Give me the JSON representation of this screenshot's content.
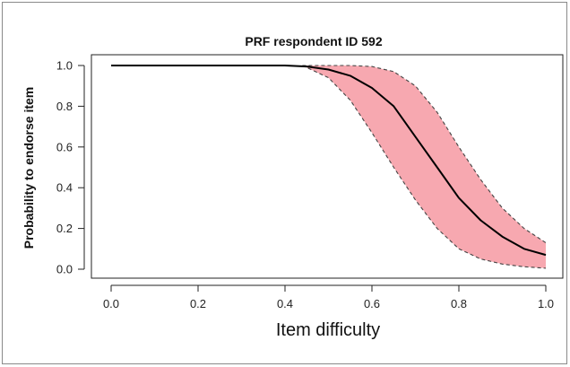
{
  "chart_data": {
    "type": "line",
    "title": "PRF respondent ID 592",
    "xlabel": "Item difficulty",
    "ylabel": "Probability to endorse item",
    "xlim": [
      0.0,
      1.0
    ],
    "ylim": [
      0.0,
      1.0
    ],
    "xticks": [
      "0.0",
      "0.2",
      "0.4",
      "0.6",
      "0.8",
      "1.0"
    ],
    "yticks": [
      "0.0",
      "0.2",
      "0.4",
      "0.6",
      "0.8",
      "1.0"
    ],
    "grid": false,
    "legend": "none",
    "colors": {
      "band_fill": "#f7a8b0",
      "band_edge": "#444444",
      "line": "#000000"
    },
    "series": [
      {
        "values": [
          {
            "x": 0.0,
            "y": 1.0
          },
          {
            "x": 0.4,
            "y": 1.0
          },
          {
            "x": 0.45,
            "y": 0.995
          },
          {
            "x": 0.5,
            "y": 0.98
          },
          {
            "x": 0.55,
            "y": 0.95
          },
          {
            "x": 0.6,
            "y": 0.89
          },
          {
            "x": 0.65,
            "y": 0.8
          },
          {
            "x": 0.7,
            "y": 0.65
          },
          {
            "x": 0.75,
            "y": 0.5
          },
          {
            "x": 0.8,
            "y": 0.35
          },
          {
            "x": 0.85,
            "y": 0.24
          },
          {
            "x": 0.9,
            "y": 0.16
          },
          {
            "x": 0.95,
            "y": 0.1
          },
          {
            "x": 1.0,
            "y": 0.07
          }
        ]
      }
    ],
    "band": {
      "upper": [
        {
          "x": 0.44,
          "y": 1.0
        },
        {
          "x": 0.5,
          "y": 1.0
        },
        {
          "x": 0.55,
          "y": 1.0
        },
        {
          "x": 0.6,
          "y": 0.995
        },
        {
          "x": 0.65,
          "y": 0.97
        },
        {
          "x": 0.7,
          "y": 0.9
        },
        {
          "x": 0.75,
          "y": 0.77
        },
        {
          "x": 0.8,
          "y": 0.6
        },
        {
          "x": 0.85,
          "y": 0.44
        },
        {
          "x": 0.9,
          "y": 0.3
        },
        {
          "x": 0.95,
          "y": 0.2
        },
        {
          "x": 1.0,
          "y": 0.13
        }
      ],
      "lower": [
        {
          "x": 0.44,
          "y": 1.0
        },
        {
          "x": 0.5,
          "y": 0.94
        },
        {
          "x": 0.55,
          "y": 0.83
        },
        {
          "x": 0.6,
          "y": 0.67
        },
        {
          "x": 0.65,
          "y": 0.5
        },
        {
          "x": 0.7,
          "y": 0.34
        },
        {
          "x": 0.75,
          "y": 0.2
        },
        {
          "x": 0.8,
          "y": 0.1
        },
        {
          "x": 0.85,
          "y": 0.05
        },
        {
          "x": 0.9,
          "y": 0.025
        },
        {
          "x": 0.95,
          "y": 0.012
        },
        {
          "x": 1.0,
          "y": 0.005
        }
      ]
    }
  }
}
